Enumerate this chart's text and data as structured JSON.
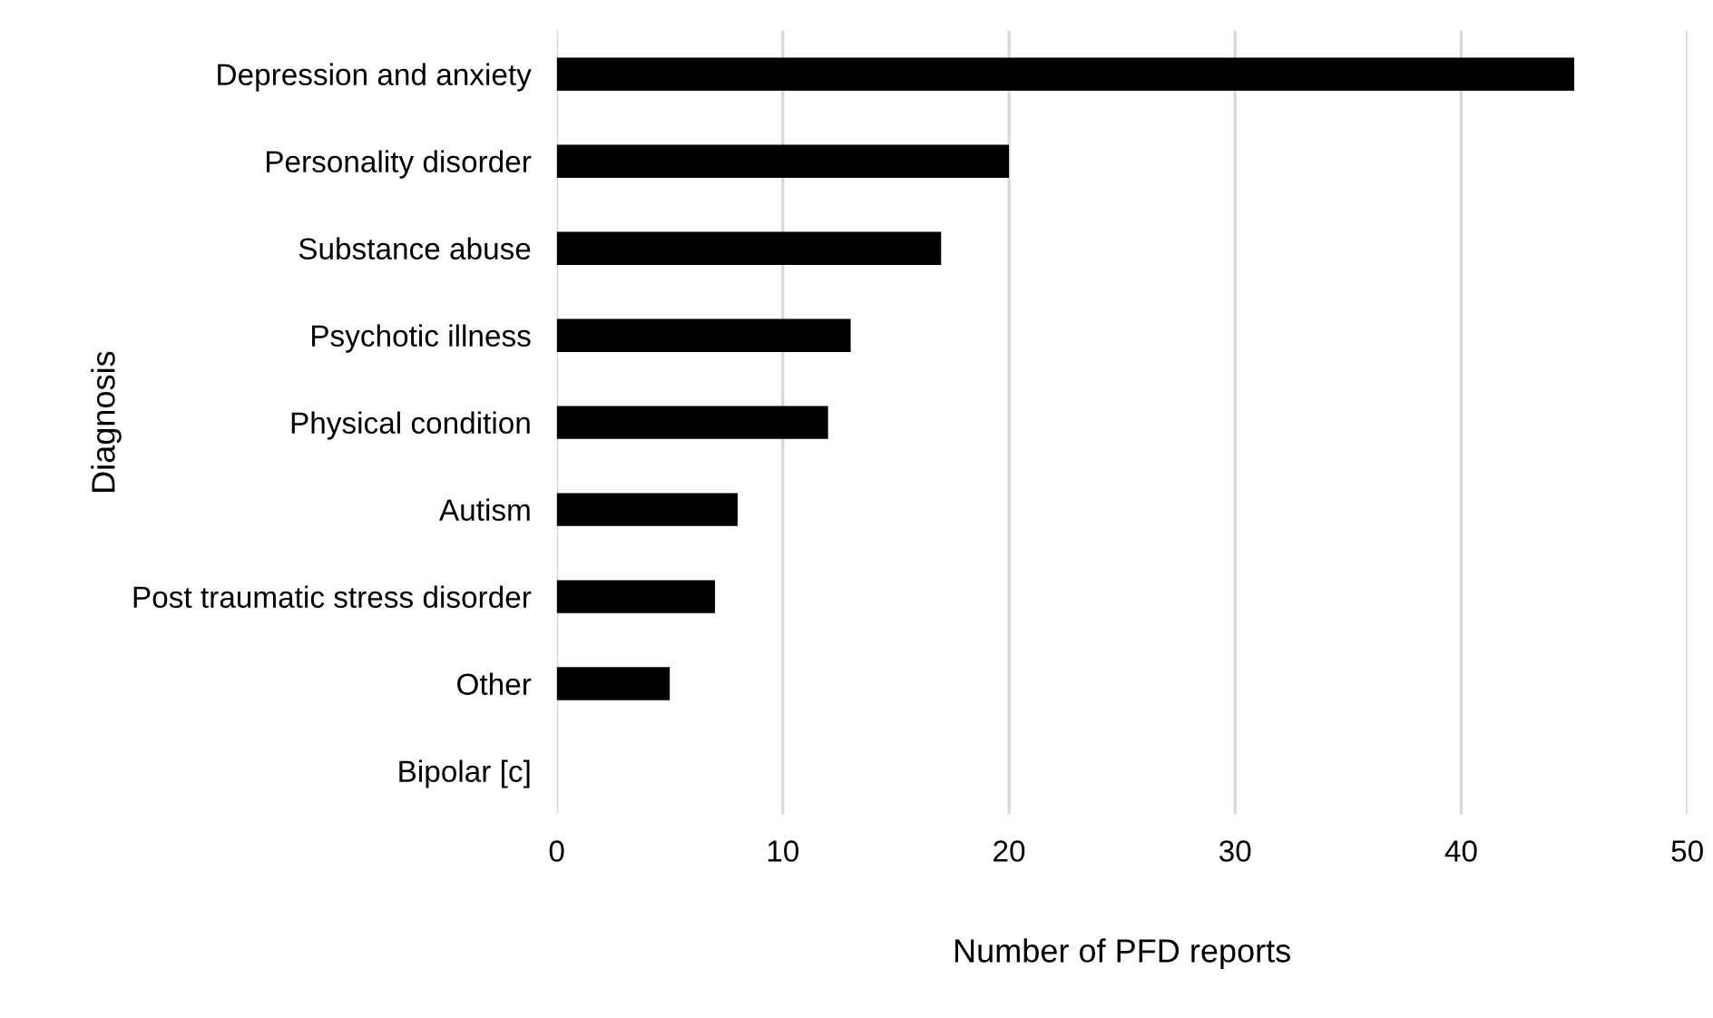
{
  "chart_data": {
    "type": "bar",
    "orientation": "horizontal",
    "categories": [
      "Depression and anxiety",
      "Personality disorder",
      "Substance abuse",
      "Psychotic illness",
      "Physical condition",
      "Autism",
      "Post traumatic stress disorder",
      "Other",
      "Bipolar [c]"
    ],
    "values": [
      45,
      20,
      17,
      13,
      12,
      8,
      7,
      5,
      0
    ],
    "color": "#000000",
    "xlim": [
      0,
      50
    ],
    "xticks": [
      0,
      10,
      20,
      30,
      40,
      50
    ],
    "xlabel": "Number of PFD reports",
    "ylabel": "Diagnosis",
    "grid": "x"
  }
}
